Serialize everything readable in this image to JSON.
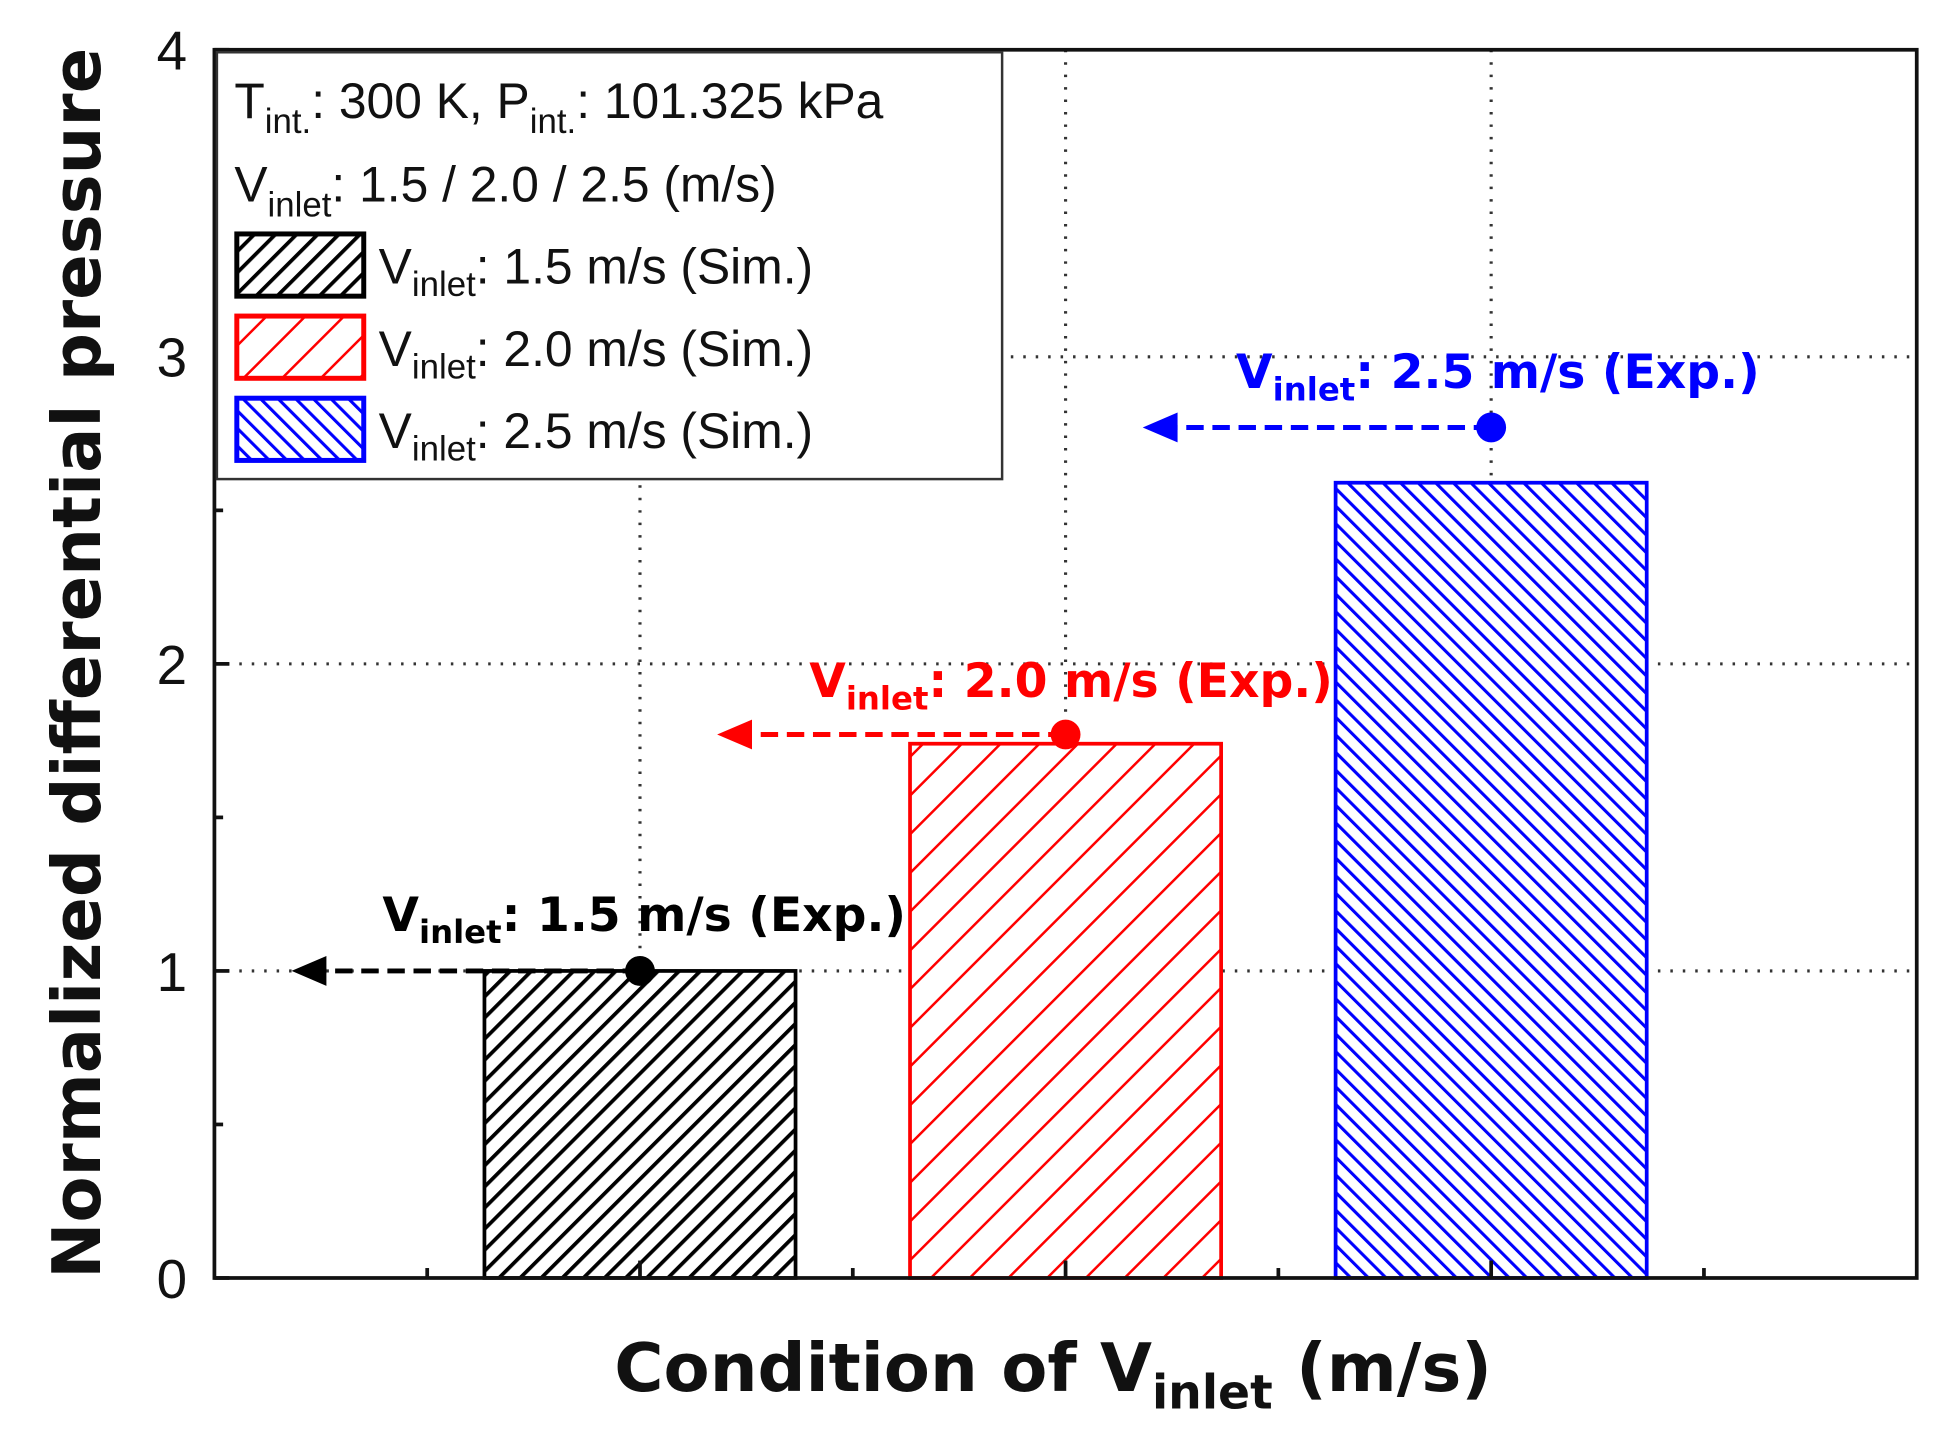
{
  "chart_data": {
    "type": "bar",
    "title": "",
    "xlabel": "Condition of V_inlet (m/s)",
    "xlabel_parts": {
      "main": "Condition of V",
      "sub": "inlet",
      "tail": " (m/s)"
    },
    "ylabel": "Normalized differential pressure",
    "ylim": [
      0,
      4
    ],
    "yticks": [
      "0",
      "1",
      "2",
      "3",
      "4"
    ],
    "grid": true,
    "categories": [
      "1.5",
      "2.0",
      "2.5"
    ],
    "series": [
      {
        "name": "Sim.",
        "values": [
          1.0,
          1.74,
          2.59
        ],
        "colors": [
          "#000000",
          "#ff0000",
          "#0000ff"
        ]
      },
      {
        "name": "Exp.",
        "values": [
          1.0,
          1.77,
          2.77
        ],
        "colors": [
          "#000000",
          "#ff0000",
          "#0000ff"
        ]
      }
    ],
    "annotations": [
      {
        "pre": "V",
        "sub": "inlet",
        "post": ": 1.5 m/s (Exp.)",
        "color": "#000000"
      },
      {
        "pre": "V",
        "sub": "inlet",
        "post": ": 2.0 m/s (Exp.)",
        "color": "#ff0000"
      },
      {
        "pre": "V",
        "sub": "inlet",
        "post": ": 2.5 m/s (Exp.)",
        "color": "#0000ff"
      }
    ],
    "legend": {
      "placement": "top-left",
      "header1": {
        "t": "T",
        "tsub": "int.",
        "mid": ": 300 K, P",
        "psub": "int.",
        "tail": ": 101.325 kPa"
      },
      "header2": {
        "pre": "V",
        "sub": "inlet",
        "post": ": 1.5 / 2.0 / 2.5 (m/s)"
      },
      "entries": [
        {
          "pre": "V",
          "sub": "inlet",
          "post": ": 1.5 m/s (Sim.)",
          "color": "#000000"
        },
        {
          "pre": "V",
          "sub": "inlet",
          "post": ": 2.0 m/s (Sim.)",
          "color": "#ff0000"
        },
        {
          "pre": "V",
          "sub": "inlet",
          "post": ": 2.5 m/s (Sim.)",
          "color": "#0000ff"
        }
      ]
    }
  }
}
